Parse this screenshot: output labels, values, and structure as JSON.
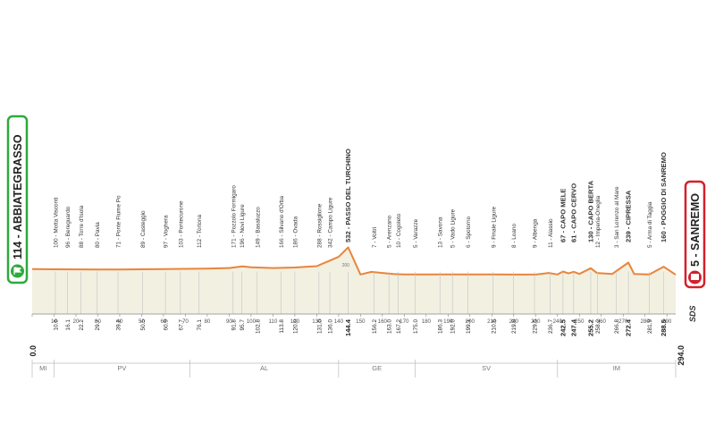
{
  "stage": {
    "start": {
      "label": "114 - ABBIATEGRASSO",
      "color": "#2eaa3c"
    },
    "finish": {
      "label": "5 - SANREMO",
      "color": "#d4202a"
    },
    "brand": "SDS"
  },
  "colors": {
    "profile_line": "#e8853c",
    "profile_fill": "#f2f0e0",
    "axis": "#9a9a9a",
    "label": "#333333"
  },
  "chart_data": {
    "type": "area",
    "x_unit": "km",
    "xlim": [
      0,
      294
    ],
    "elevation_profile": {
      "x": [
        0,
        10,
        20,
        30,
        40,
        50,
        60,
        70,
        80,
        90,
        96,
        100,
        110,
        120,
        130,
        135,
        140,
        144.4,
        150,
        155,
        160,
        165,
        170,
        180,
        190,
        200,
        210,
        220,
        230,
        236,
        240,
        242.5,
        245,
        247.4,
        250,
        255.2,
        258,
        265,
        272.4,
        275,
        282,
        288.5,
        294
      ],
      "y": [
        114,
        110,
        108,
        106,
        106,
        110,
        114,
        118,
        124,
        135,
        165,
        150,
        135,
        145,
        170,
        260,
        350,
        532,
        10,
        60,
        40,
        20,
        10,
        10,
        10,
        10,
        10,
        8,
        8,
        40,
        10,
        67,
        30,
        61,
        20,
        130,
        40,
        20,
        239,
        20,
        10,
        160,
        5
      ]
    },
    "tick_labels": [
      "0",
      "10",
      "20",
      "30",
      "40",
      "50",
      "60",
      "70",
      "80",
      "90",
      "100",
      "110",
      "120",
      "130",
      "140",
      "150",
      "160",
      "170",
      "180",
      "190",
      "200",
      "210",
      "220",
      "230",
      "240",
      "250",
      "260",
      "270",
      "280",
      "290"
    ],
    "y_marker": "200",
    "places": [
      {
        "name": "Motta Visconti",
        "alt": "100",
        "km": "10.6"
      },
      {
        "name": "Bereguardo",
        "alt": "96",
        "km": "16.1"
      },
      {
        "name": "Torre d'Isola",
        "alt": "88",
        "km": "22.2"
      },
      {
        "name": "Pavia",
        "alt": "80",
        "km": "29.7"
      },
      {
        "name": "Ponte Fiume Po",
        "alt": "71",
        "km": "39.2"
      },
      {
        "name": "Casteggio",
        "alt": "89",
        "km": "50.5"
      },
      {
        "name": "Voghera",
        "alt": "97",
        "km": "60.9"
      },
      {
        "name": "Pontecurone",
        "alt": "103",
        "km": "67.7"
      },
      {
        "name": "Tortona",
        "alt": "112",
        "km": "76.1"
      },
      {
        "name": "Pozzolo Formigaro",
        "alt": "171",
        "km": "91.8"
      },
      {
        "name": "Novi Ligure",
        "alt": "196",
        "km": "95.7"
      },
      {
        "name": "Basaluzzo",
        "alt": "149",
        "km": "102.8"
      },
      {
        "name": "Silvano d'Orba",
        "alt": "166",
        "km": "113.8"
      },
      {
        "name": "Ovada",
        "alt": "186",
        "km": "120.0"
      },
      {
        "name": "Rossiglione",
        "alt": "288",
        "km": "131.0"
      },
      {
        "name": "Campo Ligure",
        "alt": "342",
        "km": "136.0"
      },
      {
        "name": "PASSO DEL TURCHINO",
        "alt": "532",
        "km": "144.4",
        "bold": true
      },
      {
        "name": "Voltri",
        "alt": "7",
        "km": "156.2"
      },
      {
        "name": "Arenzano",
        "alt": "5",
        "km": "163.0"
      },
      {
        "name": "Cogoleto",
        "alt": "10",
        "km": "167.2"
      },
      {
        "name": "Varazze",
        "alt": "5",
        "km": "175.0"
      },
      {
        "name": "Savona",
        "alt": "13",
        "km": "186.3"
      },
      {
        "name": "Vado Ligure",
        "alt": "5",
        "km": "192.0"
      },
      {
        "name": "Spotorno",
        "alt": "6",
        "km": "199.1"
      },
      {
        "name": "Finale Ligure",
        "alt": "9",
        "km": "210.6"
      },
      {
        "name": "Loano",
        "alt": "8",
        "km": "219.8"
      },
      {
        "name": "Albenga",
        "alt": "9",
        "km": "229.5"
      },
      {
        "name": "Alassio",
        "alt": "11",
        "km": "236.7"
      },
      {
        "name": "CAPO MELE",
        "alt": "67",
        "km": "242.5",
        "bold": true
      },
      {
        "name": "CAPO CERVO",
        "alt": "61",
        "km": "247.4",
        "bold": true
      },
      {
        "name": "CAPO BERTA",
        "alt": "130",
        "km": "255.2",
        "bold": true
      },
      {
        "name": "Imperia-Oneglia",
        "alt": "12",
        "km": "258.2"
      },
      {
        "name": "San Lorenzo al Mare",
        "alt": "3",
        "km": "266.8"
      },
      {
        "name": "CIPRESSA",
        "alt": "239",
        "km": "272.4",
        "bold": true
      },
      {
        "name": "Arma di Taggia",
        "alt": "5",
        "km": "281.9"
      },
      {
        "name": "POGGIO DI SANREMO",
        "alt": "160",
        "km": "288.5",
        "bold": true
      }
    ],
    "start_km": "0.0",
    "finish_km": "294.0",
    "provinces": [
      {
        "code": "MI",
        "from": 0,
        "to": 10
      },
      {
        "code": "PV",
        "from": 10,
        "to": 72
      },
      {
        "code": "AL",
        "from": 72,
        "to": 140
      },
      {
        "code": "GE",
        "from": 140,
        "to": 175
      },
      {
        "code": "SV",
        "from": 175,
        "to": 240
      },
      {
        "code": "IM",
        "from": 240,
        "to": 294
      }
    ]
  }
}
